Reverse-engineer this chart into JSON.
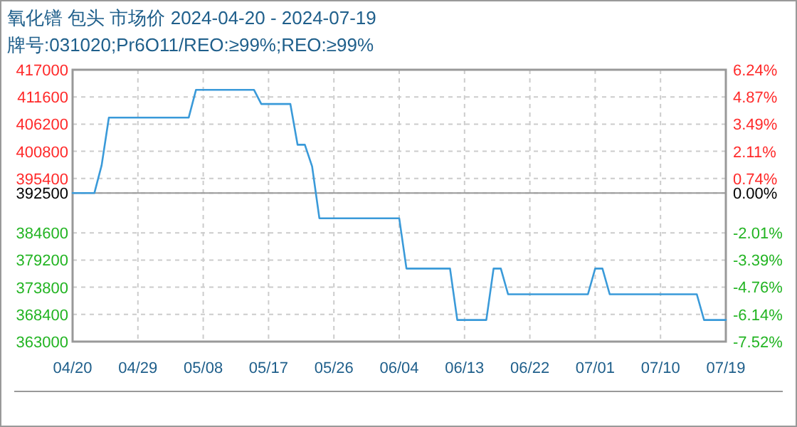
{
  "chart_data": {
    "type": "line",
    "title": "氧化镨 包头 市场价 2024-04-20 - 2024-07-19",
    "subtitle": "牌号:031020;Pr6O11/REO:≥99%;REO:≥99%",
    "series": [
      {
        "color": "#3a9ad9",
        "x": [
          "2024-04-20",
          "2024-04-23",
          "2024-04-24",
          "2024-04-25",
          "2024-05-06",
          "2024-05-07",
          "2024-05-15",
          "2024-05-16",
          "2024-05-20",
          "2024-05-21",
          "2024-05-22",
          "2024-05-23",
          "2024-05-24",
          "2024-06-04",
          "2024-06-05",
          "2024-06-11",
          "2024-06-12",
          "2024-06-16",
          "2024-06-17",
          "2024-06-18",
          "2024-06-19",
          "2024-06-30",
          "2024-07-01",
          "2024-07-02",
          "2024-07-03",
          "2024-07-15",
          "2024-07-16",
          "2024-07-19"
        ],
        "values": [
          392500,
          392500,
          398000,
          407500,
          407500,
          413000,
          413000,
          410200,
          410200,
          402100,
          402100,
          397800,
          387500,
          387500,
          377500,
          377500,
          367300,
          367300,
          377500,
          377500,
          372400,
          372400,
          377500,
          377500,
          372400,
          372400,
          367300,
          367300
        ]
      }
    ],
    "xlim": [
      "2024-04-20",
      "2024-07-19"
    ],
    "xticks": [
      {
        "value": "2024-04-20",
        "label": "04/20"
      },
      {
        "value": "2024-04-29",
        "label": "04/29"
      },
      {
        "value": "2024-05-08",
        "label": "05/08"
      },
      {
        "value": "2024-05-17",
        "label": "05/17"
      },
      {
        "value": "2024-05-26",
        "label": "05/26"
      },
      {
        "value": "2024-06-04",
        "label": "06/04"
      },
      {
        "value": "2024-06-13",
        "label": "06/13"
      },
      {
        "value": "2024-06-22",
        "label": "06/22"
      },
      {
        "value": "2024-07-01",
        "label": "07/01"
      },
      {
        "value": "2024-07-10",
        "label": "07/10"
      },
      {
        "value": "2024-07-19",
        "label": "07/19"
      }
    ],
    "ylim": [
      363000,
      417000
    ],
    "yticks": [
      363000,
      368400,
      373800,
      379200,
      384600,
      392500,
      395400,
      400800,
      406200,
      411600,
      417000
    ],
    "y2lim": [
      -7.52,
      6.24
    ],
    "y2ticks": [
      {
        "value": -7.52,
        "label": "-7.52%"
      },
      {
        "value": -6.14,
        "label": "-6.14%"
      },
      {
        "value": -4.76,
        "label": "-4.76%"
      },
      {
        "value": -3.39,
        "label": "-3.39%"
      },
      {
        "value": -2.01,
        "label": "-2.01%"
      },
      {
        "value": 0,
        "label": "0.00%"
      },
      {
        "value": 0.74,
        "label": "0.74%"
      },
      {
        "value": 2.11,
        "label": "2.11%"
      },
      {
        "value": 3.49,
        "label": "3.49%"
      },
      {
        "value": 4.87,
        "label": "4.87%"
      },
      {
        "value": 6.24,
        "label": "6.24%"
      }
    ],
    "ref_lines": [
      {
        "axis": "y",
        "value": 392500,
        "color": "#999999"
      }
    ],
    "grid": true,
    "marker": "none",
    "line_style": "solid"
  }
}
